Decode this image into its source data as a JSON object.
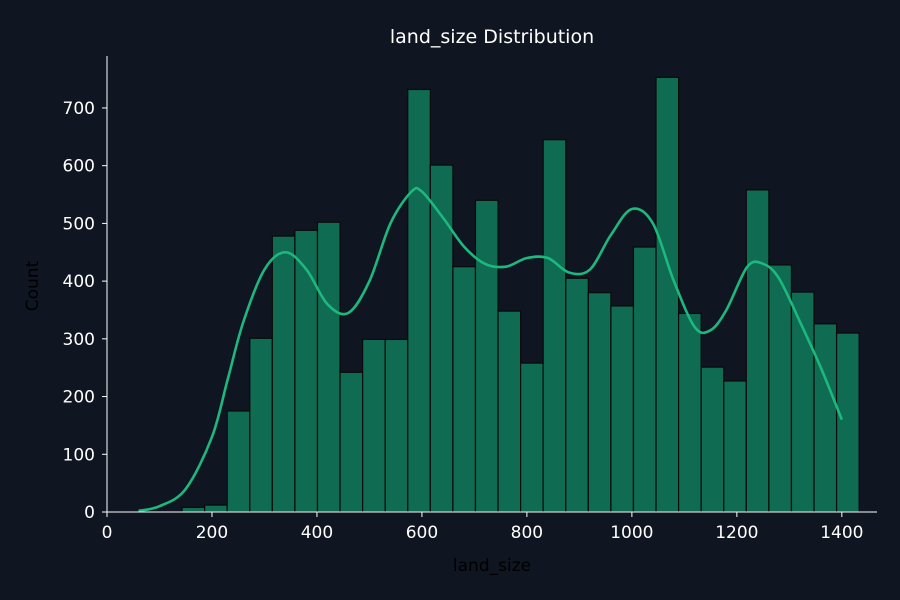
{
  "chart_data": {
    "type": "bar",
    "title": "land_size Distribution",
    "xlabel": "land_size",
    "ylabel": "Count",
    "xlim": [
      0,
      1467
    ],
    "ylim": [
      0,
      790
    ],
    "xticks": [
      0,
      200,
      400,
      600,
      800,
      1000,
      1200,
      1400
    ],
    "yticks": [
      0,
      100,
      200,
      300,
      400,
      500,
      600,
      700
    ],
    "bins": [
      {
        "x0": 143,
        "x1": 186,
        "count": 8
      },
      {
        "x0": 186,
        "x1": 229,
        "count": 12
      },
      {
        "x0": 229,
        "x1": 272,
        "count": 175
      },
      {
        "x0": 272,
        "x1": 315,
        "count": 301
      },
      {
        "x0": 315,
        "x1": 358,
        "count": 478
      },
      {
        "x0": 358,
        "x1": 401,
        "count": 488
      },
      {
        "x0": 401,
        "x1": 444,
        "count": 502
      },
      {
        "x0": 444,
        "x1": 487,
        "count": 242
      },
      {
        "x0": 487,
        "x1": 530,
        "count": 299
      },
      {
        "x0": 530,
        "x1": 573,
        "count": 299
      },
      {
        "x0": 573,
        "x1": 616,
        "count": 732
      },
      {
        "x0": 616,
        "x1": 659,
        "count": 601
      },
      {
        "x0": 659,
        "x1": 702,
        "count": 425
      },
      {
        "x0": 702,
        "x1": 745,
        "count": 540
      },
      {
        "x0": 745,
        "x1": 788,
        "count": 348
      },
      {
        "x0": 788,
        "x1": 831,
        "count": 258
      },
      {
        "x0": 831,
        "x1": 874,
        "count": 645
      },
      {
        "x0": 874,
        "x1": 917,
        "count": 405
      },
      {
        "x0": 917,
        "x1": 960,
        "count": 380
      },
      {
        "x0": 960,
        "x1": 1003,
        "count": 357
      },
      {
        "x0": 1003,
        "x1": 1046,
        "count": 459
      },
      {
        "x0": 1046,
        "x1": 1089,
        "count": 753
      },
      {
        "x0": 1089,
        "x1": 1132,
        "count": 344
      },
      {
        "x0": 1132,
        "x1": 1175,
        "count": 251
      },
      {
        "x0": 1175,
        "x1": 1218,
        "count": 227
      },
      {
        "x0": 1218,
        "x1": 1261,
        "count": 558
      },
      {
        "x0": 1261,
        "x1": 1304,
        "count": 428
      },
      {
        "x0": 1304,
        "x1": 1347,
        "count": 381
      },
      {
        "x0": 1347,
        "x1": 1390,
        "count": 326
      },
      {
        "x0": 1390,
        "x1": 1433,
        "count": 310
      }
    ],
    "kde": {
      "x": [
        60,
        100,
        150,
        200,
        230,
        260,
        300,
        340,
        380,
        420,
        460,
        500,
        540,
        580,
        600,
        640,
        680,
        720,
        760,
        800,
        840,
        880,
        920,
        960,
        1000,
        1040,
        1080,
        1120,
        1150,
        1180,
        1220,
        1250,
        1280,
        1320,
        1360,
        1400
      ],
      "y": [
        2,
        10,
        40,
        130,
        230,
        330,
        420,
        450,
        420,
        360,
        345,
        400,
        500,
        555,
        555,
        510,
        460,
        430,
        425,
        440,
        440,
        415,
        420,
        480,
        525,
        500,
        400,
        320,
        315,
        350,
        425,
        430,
        405,
        330,
        250,
        160
      ]
    },
    "colors": {
      "bar_fill": "#0f6b51",
      "bar_edge": "#0a0a0a",
      "kde_line": "#1db87e",
      "background": "#0f1521",
      "axis": "#ffffff"
    },
    "grid": false
  }
}
